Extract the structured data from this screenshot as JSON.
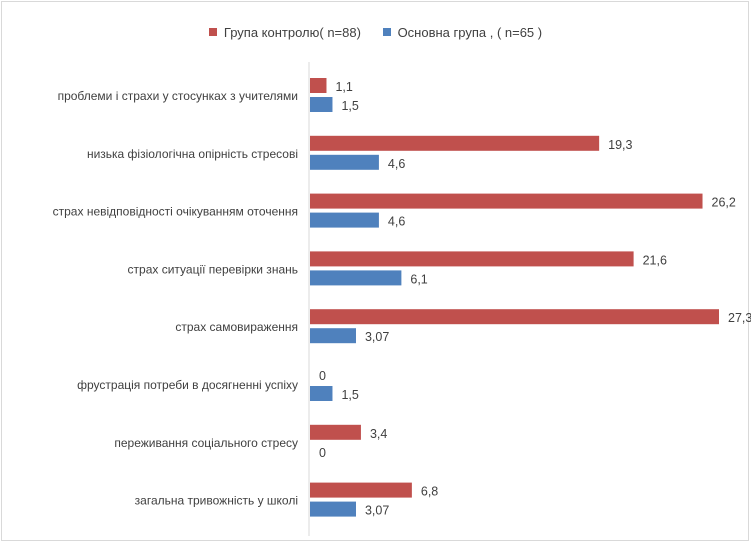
{
  "chart_data": {
    "type": "bar",
    "orientation": "horizontal",
    "legend_position": "top",
    "grid": false,
    "xlim": [
      0,
      27.3
    ],
    "categories": [
      "проблеми і страхи у стосунках з учителями",
      "низька фізіологічна опірність стресові",
      "страх невідповідності очікуванням оточення",
      "страх ситуації перевірки знань",
      "страх самовираження",
      "фрустрація потреби в досягненні успіху",
      "переживання соціального стресу",
      "загальна тривожність у школі"
    ],
    "series": [
      {
        "name": "Група контролю( n=88)",
        "color": "#c0504d",
        "values": [
          1.1,
          19.3,
          26.2,
          21.6,
          27.3,
          0,
          3.4,
          6.8
        ],
        "labels": [
          "1,1",
          "19,3",
          "26,2",
          "21,6",
          "27,3",
          "0",
          "3,4",
          "6,8"
        ]
      },
      {
        "name": "Основна група , ( n=65 )",
        "color": "#4f81bd",
        "values": [
          1.5,
          4.6,
          4.6,
          6.1,
          3.07,
          1.5,
          0,
          3.07
        ],
        "labels": [
          "1,5",
          "4,6",
          "4,6",
          "6,1",
          "3,07",
          "1,5",
          "0",
          "3,07"
        ]
      }
    ]
  }
}
